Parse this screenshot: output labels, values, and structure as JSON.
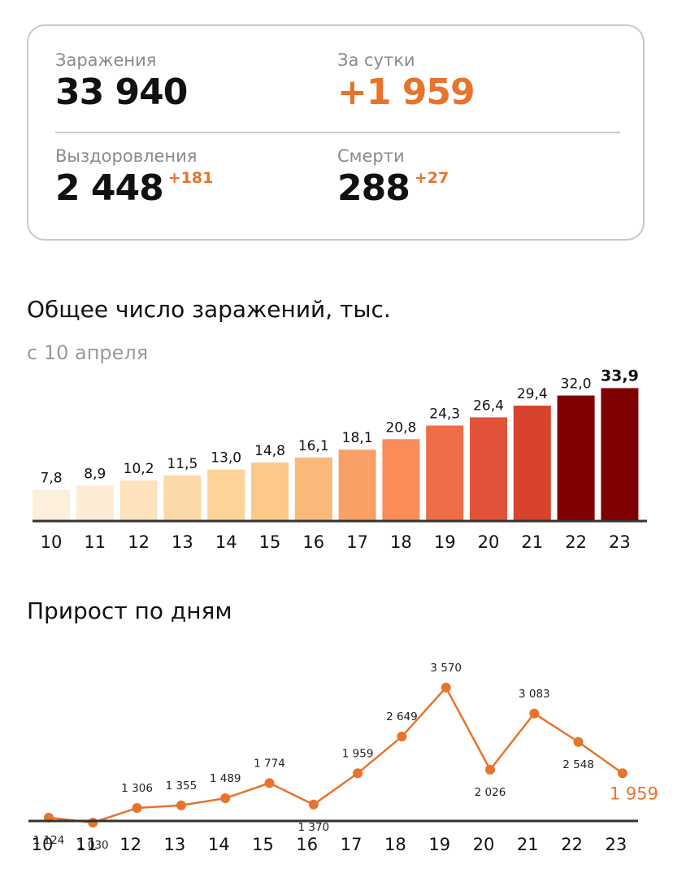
{
  "stats": {
    "infections": {
      "label": "Заражения",
      "value": "33 940"
    },
    "daily": {
      "label": "За сутки",
      "value": "+1 959"
    },
    "recoveries": {
      "label": "Выздоровления",
      "value": "2 448",
      "delta": "+181"
    },
    "deaths": {
      "label": "Смерти",
      "value": "288",
      "delta": "+27"
    }
  },
  "colors": {
    "accent": "#e8732b",
    "bars": [
      "#fcefdc",
      "#fcecd6",
      "#fde2bd",
      "#fcd9a8",
      "#fdd399",
      "#fcc98a",
      "#fab87b",
      "#f9a066",
      "#f98c59",
      "#ec6d47",
      "#e25238",
      "#d8432e",
      "#7f0000",
      "#7f0000"
    ]
  },
  "chart_data": [
    {
      "type": "bar",
      "title": "Общее число заражений, тыс.",
      "subtitle": "с 10 апреля",
      "categories": [
        "10",
        "11",
        "12",
        "13",
        "14",
        "15",
        "16",
        "17",
        "18",
        "19",
        "20",
        "21",
        "22",
        "23"
      ],
      "values": [
        7.8,
        8.9,
        10.2,
        11.5,
        13.0,
        14.8,
        16.1,
        18.1,
        20.8,
        24.3,
        26.4,
        29.4,
        32.0,
        33.9
      ],
      "value_labels": [
        "7,8",
        "8,9",
        "10,2",
        "11,5",
        "13,0",
        "14,8",
        "16,1",
        "18,1",
        "20,8",
        "24,3",
        "26,4",
        "29,4",
        "32,0",
        "33,9"
      ],
      "ylim": [
        0,
        34
      ]
    },
    {
      "type": "line",
      "title": "Прирост по дням",
      "categories": [
        "10",
        "11",
        "12",
        "13",
        "14",
        "15",
        "16",
        "17",
        "18",
        "19",
        "20",
        "21",
        "22",
        "23"
      ],
      "values": [
        1124,
        1030,
        1306,
        1355,
        1489,
        1774,
        1370,
        1959,
        2649,
        3570,
        2026,
        3083,
        2548,
        1959
      ],
      "value_labels": [
        "1 124",
        "1 030",
        "1 306",
        "1 355",
        "1 489",
        "1 774",
        "1 370",
        "1 959",
        "2 649",
        "3 570",
        "2 026",
        "3 083",
        "2 548",
        "1 959"
      ],
      "label_positions": [
        "below",
        "below",
        "above",
        "above",
        "above",
        "above",
        "below",
        "above",
        "above",
        "above",
        "below",
        "above",
        "below",
        "below-highlight"
      ]
    }
  ]
}
